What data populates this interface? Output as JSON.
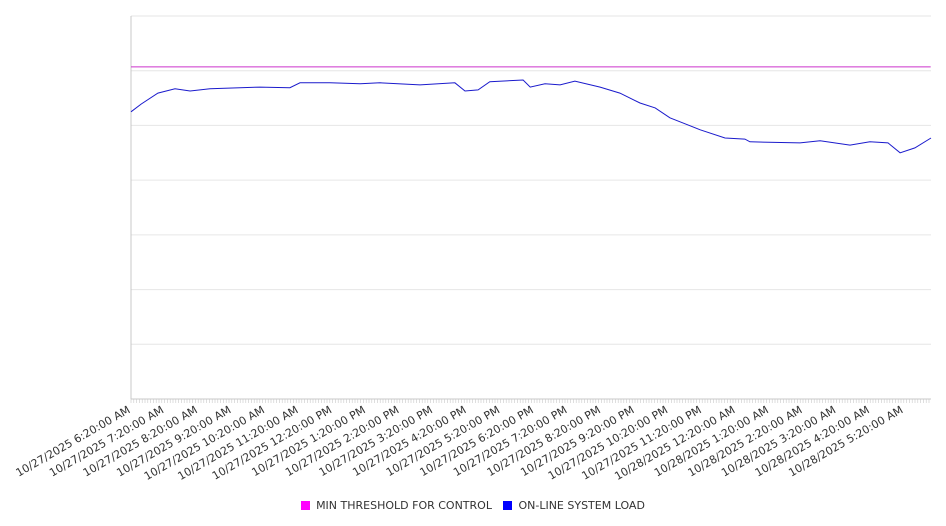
{
  "chart_data": {
    "type": "line",
    "title": "",
    "xlabel": "",
    "ylabel": "",
    "y_tick_labels_visible": false,
    "ylim": [
      0,
      7
    ],
    "grid": true,
    "legend_placement": "bottom-center",
    "x_tick_labels": [
      "10/27/2025 6:20:00 AM",
      "10/27/2025 7:20:00 AM",
      "10/27/2025 8:20:00 AM",
      "10/27/2025 9:20:00 AM",
      "10/27/2025 10:20:00 AM",
      "10/27/2025 11:20:00 AM",
      "10/27/2025 12:20:00 PM",
      "10/27/2025 1:20:00 PM",
      "10/27/2025 2:20:00 PM",
      "10/27/2025 3:20:00 PM",
      "10/27/2025 4:20:00 PM",
      "10/27/2025 5:20:00 PM",
      "10/27/2025 6:20:00 PM",
      "10/27/2025 7:20:00 PM",
      "10/27/2025 8:20:00 PM",
      "10/27/2025 9:20:00 PM",
      "10/27/2025 10:20:00 PM",
      "10/27/2025 11:20:00 PM",
      "10/28/2025 12:20:00 AM",
      "10/28/2025 1:20:00 AM",
      "10/28/2025 2:20:00 AM",
      "10/28/2025 3:20:00 AM",
      "10/28/2025 4:20:00 AM",
      "10/28/2025 5:20:00 AM"
    ],
    "x_unit": "hours since 10/27/2025 6:20:00 AM",
    "xlim": [
      0,
      23.8
    ],
    "series": [
      {
        "name": "MIN THRESHOLD FOR CONTROL",
        "color": "#ff00ff",
        "line_color": "#cc33cc",
        "x": [
          0,
          23.8
        ],
        "values": [
          6.07,
          6.07
        ]
      },
      {
        "name": "ON-LINE SYSTEM LOAD",
        "color": "#0000ff",
        "line_color": "#1a1acc",
        "x": [
          0,
          0.3,
          0.8,
          1.31,
          1.76,
          2.35,
          3.24,
          3.84,
          4.73,
          5.03,
          5.92,
          6.82,
          7.41,
          8.6,
          9.64,
          9.94,
          10.33,
          10.68,
          11.67,
          11.88,
          12.32,
          12.77,
          13.21,
          13.96,
          14.55,
          15.15,
          15.6,
          16.04,
          16.49,
          16.94,
          17.68,
          18.27,
          18.42,
          19.91,
          20.51,
          21.4,
          21.99,
          22.53,
          22.89,
          23.33,
          23.81
        ],
        "values": [
          5.25,
          5.39,
          5.59,
          5.67,
          5.63,
          5.67,
          5.69,
          5.7,
          5.69,
          5.78,
          5.78,
          5.76,
          5.78,
          5.74,
          5.78,
          5.63,
          5.65,
          5.8,
          5.83,
          5.7,
          5.76,
          5.74,
          5.81,
          5.7,
          5.59,
          5.41,
          5.32,
          5.14,
          5.03,
          4.92,
          4.77,
          4.75,
          4.7,
          4.68,
          4.72,
          4.64,
          4.7,
          4.68,
          4.5,
          4.59,
          4.77
        ]
      }
    ]
  }
}
